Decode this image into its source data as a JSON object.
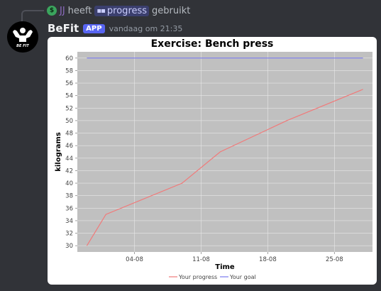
{
  "reply": {
    "username": "JJ",
    "verb": "heeft",
    "command": "progress",
    "suffix": "gebruikt"
  },
  "message": {
    "bot_name": "BeFit",
    "badge": "APP",
    "timestamp": "vandaag om 21:35",
    "avatar_text": "BE FIT"
  },
  "chart_data": {
    "type": "line",
    "title": "Exercise: Bench press",
    "xlabel": "Time",
    "ylabel": "kilograms",
    "ylim": [
      29,
      61
    ],
    "yticks": [
      30,
      32,
      34,
      36,
      38,
      40,
      42,
      44,
      46,
      48,
      50,
      52,
      54,
      56,
      58,
      60
    ],
    "x_ticks": [
      "04-08",
      "11-08",
      "18-08",
      "25-08"
    ],
    "x_tick_days": [
      4,
      11,
      18,
      25
    ],
    "xlim": [
      -2,
      29
    ],
    "grid": true,
    "legend": "bottom",
    "series": [
      {
        "name": "Your progress",
        "color": "#f07a7a",
        "x": [
          -1,
          1,
          9,
          13,
          20,
          28
        ],
        "values": [
          30,
          35,
          40,
          45,
          50,
          55
        ]
      },
      {
        "name": "Your goal",
        "color": "#7a7af0",
        "x": [
          -1,
          28
        ],
        "values": [
          60,
          60
        ]
      }
    ]
  }
}
